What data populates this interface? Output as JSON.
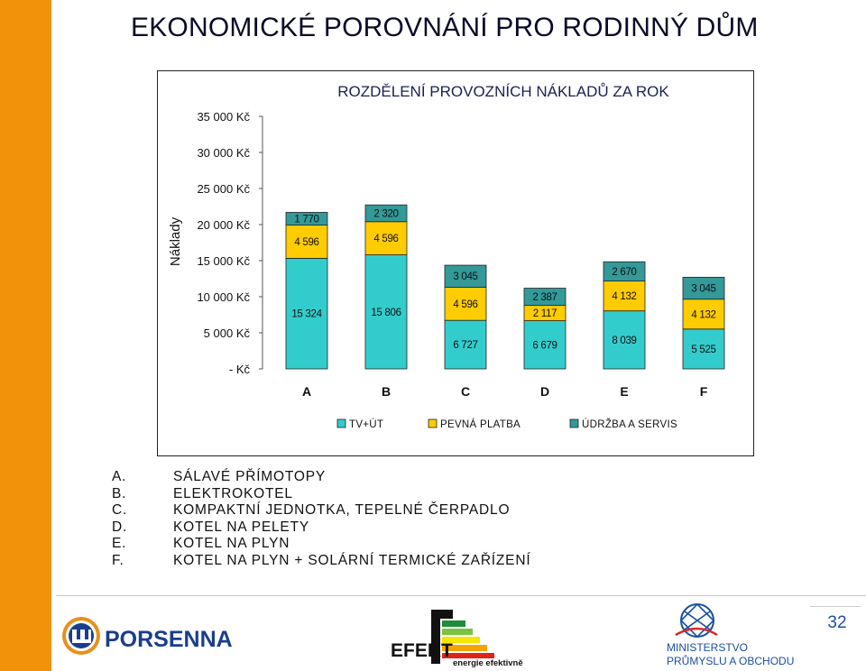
{
  "title": "EKONOMICKÉ POROVNÁNÍ PRO RODINNÝ DŮM",
  "chart_data": {
    "type": "bar",
    "stacked": true,
    "title": "ROZDĚLENÍ PROVOZNÍCH NÁKLADŮ ZA ROK",
    "ylabel": "Náklady",
    "xlabel": "",
    "categories": [
      "A",
      "B",
      "C",
      "D",
      "E",
      "F"
    ],
    "ylim": [
      0,
      35000
    ],
    "y_ticks": [
      {
        "value": 0,
        "label": "- Kč"
      },
      {
        "value": 5000,
        "label": "5 000 Kč"
      },
      {
        "value": 10000,
        "label": "10 000 Kč"
      },
      {
        "value": 15000,
        "label": "15 000 Kč"
      },
      {
        "value": 20000,
        "label": "20 000 Kč"
      },
      {
        "value": 25000,
        "label": "25 000 Kč"
      },
      {
        "value": 30000,
        "label": "30 000 Kč"
      },
      {
        "value": 35000,
        "label": "35 000 Kč"
      }
    ],
    "series": [
      {
        "name": "TV+ÚT",
        "color": "#33cccc",
        "values": [
          15324,
          15806,
          6727,
          6679,
          8039,
          5525
        ],
        "labels": [
          "15 324",
          "15 806",
          "6 727",
          "6 679",
          "8 039",
          "5 525"
        ]
      },
      {
        "name": "PEVNÁ PLATBA",
        "color": "#ffcc00",
        "values": [
          4596,
          4596,
          4596,
          2117,
          4132,
          4132
        ],
        "labels": [
          "4 596",
          "4 596",
          "4 596",
          "2 117",
          "4 132",
          "4 132"
        ]
      },
      {
        "name": "ÚDRŽBA A SERVIS",
        "color": "#339999",
        "values": [
          1770,
          2320,
          3045,
          2387,
          2670,
          3045
        ],
        "labels": [
          "1 770",
          "2 320",
          "3 045",
          "2 387",
          "2 670",
          "3 045"
        ]
      }
    ],
    "legend_position": "bottom",
    "grid": false
  },
  "options": [
    {
      "letter": "A.",
      "text": "SÁLAVÉ PŘÍMOTOPY"
    },
    {
      "letter": "B.",
      "text": "ELEKTROKOTEL"
    },
    {
      "letter": "C.",
      "text": "KOMPAKTNÍ JEDNOTKA, TEPELNÉ ČERPADLO"
    },
    {
      "letter": "D.",
      "text": "KOTEL NA PELETY"
    },
    {
      "letter": "E.",
      "text": "KOTEL NA PLYN"
    },
    {
      "letter": "F.",
      "text": "KOTEL NA PLYN + SOLÁRNÍ TERMICKÉ ZAŘÍZENÍ"
    }
  ],
  "logos": {
    "porsenna": "PORSENNA",
    "efekt_main": "EFEKT",
    "efekt_sub": "energie efektivně",
    "ministry_line1": "MINISTERSTVO",
    "ministry_line2": "PRŮMYSLU A OBCHODU"
  },
  "page_number": "32",
  "colors": {
    "accent_orange": "#f0930a",
    "brand_blue": "#1a4fa0"
  }
}
